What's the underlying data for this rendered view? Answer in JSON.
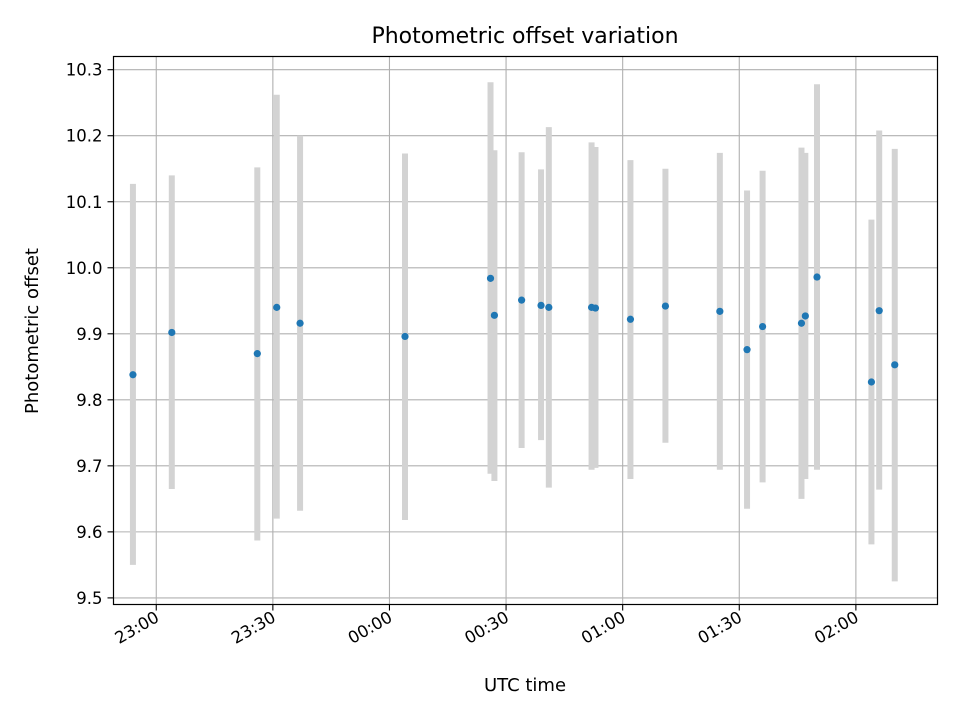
{
  "chart_data": {
    "type": "scatter",
    "title": "Photometric offset variation",
    "xlabel": "UTC time",
    "ylabel": "Photometric offset",
    "x_axis_kind": "time",
    "xlim": [
      "22:49",
      "02:21"
    ],
    "ylim": [
      9.49,
      10.32
    ],
    "x_ticks": [
      "23:00",
      "23:30",
      "00:00",
      "00:30",
      "01:00",
      "01:30",
      "02:00"
    ],
    "y_ticks": [
      9.5,
      9.6,
      9.7,
      9.8,
      9.9,
      10.0,
      10.1,
      10.2,
      10.3
    ],
    "y_tick_labels": [
      "9.5",
      "9.6",
      "9.7",
      "9.8",
      "9.9",
      "10.0",
      "10.1",
      "10.2",
      "10.3"
    ],
    "grid": true,
    "marker_color": "#1f77b4",
    "errorbar_color": "#d3d3d3",
    "series": [
      {
        "points": [
          {
            "x": "22:54",
            "y": 9.838,
            "ylow": 9.55,
            "yhigh": 10.127
          },
          {
            "x": "23:04",
            "y": 9.902,
            "ylow": 9.665,
            "yhigh": 10.14
          },
          {
            "x": "23:26",
            "y": 9.87,
            "ylow": 9.587,
            "yhigh": 10.152
          },
          {
            "x": "23:31",
            "y": 9.94,
            "ylow": 9.62,
            "yhigh": 10.262
          },
          {
            "x": "23:37",
            "y": 9.916,
            "ylow": 9.632,
            "yhigh": 10.2
          },
          {
            "x": "00:04",
            "y": 9.896,
            "ylow": 9.618,
            "yhigh": 10.173
          },
          {
            "x": "00:26",
            "y": 9.984,
            "ylow": 9.688,
            "yhigh": 10.281
          },
          {
            "x": "00:27",
            "y": 9.928,
            "ylow": 9.677,
            "yhigh": 10.178
          },
          {
            "x": "00:34",
            "y": 9.951,
            "ylow": 9.727,
            "yhigh": 10.175
          },
          {
            "x": "00:39",
            "y": 9.943,
            "ylow": 9.739,
            "yhigh": 10.149
          },
          {
            "x": "00:41",
            "y": 9.94,
            "ylow": 9.667,
            "yhigh": 10.213
          },
          {
            "x": "00:52",
            "y": 9.94,
            "ylow": 9.694,
            "yhigh": 10.19
          },
          {
            "x": "00:53",
            "y": 9.939,
            "ylow": 9.697,
            "yhigh": 10.183
          },
          {
            "x": "01:02",
            "y": 9.922,
            "ylow": 9.68,
            "yhigh": 10.163
          },
          {
            "x": "01:11",
            "y": 9.942,
            "ylow": 9.735,
            "yhigh": 10.15
          },
          {
            "x": "01:25",
            "y": 9.934,
            "ylow": 9.694,
            "yhigh": 10.174
          },
          {
            "x": "01:32",
            "y": 9.876,
            "ylow": 9.635,
            "yhigh": 10.117
          },
          {
            "x": "01:36",
            "y": 9.911,
            "ylow": 9.675,
            "yhigh": 10.147
          },
          {
            "x": "01:46",
            "y": 9.916,
            "ylow": 9.65,
            "yhigh": 10.182
          },
          {
            "x": "01:47",
            "y": 9.927,
            "ylow": 9.68,
            "yhigh": 10.174
          },
          {
            "x": "01:50",
            "y": 9.986,
            "ylow": 9.694,
            "yhigh": 10.278
          },
          {
            "x": "02:04",
            "y": 9.827,
            "ylow": 9.581,
            "yhigh": 10.073
          },
          {
            "x": "02:06",
            "y": 9.935,
            "ylow": 9.664,
            "yhigh": 10.208
          },
          {
            "x": "02:10",
            "y": 9.853,
            "ylow": 9.525,
            "yhigh": 10.18
          }
        ]
      }
    ]
  }
}
